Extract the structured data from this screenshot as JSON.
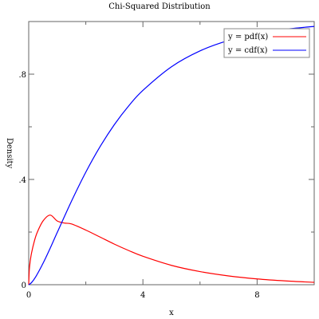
{
  "chart_data": {
    "type": "line",
    "title": "Chi-Squared Distribution",
    "xlabel": "x",
    "ylabel": "Density",
    "xlim": [
      0,
      10
    ],
    "ylim": [
      0,
      1
    ],
    "x_ticks": [
      {
        "value": 0,
        "label": "0"
      },
      {
        "value": 4,
        "label": "4"
      },
      {
        "value": 8,
        "label": "8"
      }
    ],
    "y_ticks": [
      {
        "value": 0,
        "label": "0"
      },
      {
        "value": 0.4,
        "label": ".4"
      },
      {
        "value": 0.8,
        "label": ".8"
      }
    ],
    "minor_x_ticks": [
      2,
      6,
      10
    ],
    "minor_y_ticks": [
      0.2,
      0.6,
      1.0
    ],
    "legend_position": "top-right",
    "series": [
      {
        "name": "y = pdf(x)",
        "color": "#ff0000",
        "x": [
          0.0,
          0.02,
          0.05,
          0.1,
          0.2,
          0.3,
          0.5,
          0.75,
          1.0,
          1.25,
          1.5,
          2.0,
          2.5,
          3.0,
          3.5,
          4.0,
          5.0,
          6.0,
          7.0,
          8.0,
          9.0,
          10.0
        ],
        "y": [
          0.0,
          0.0558,
          0.0871,
          0.121,
          0.1665,
          0.1993,
          0.242,
          0.2646,
          0.242,
          0.2343,
          0.2308,
          0.2076,
          0.181,
          0.1542,
          0.1299,
          0.108,
          0.0735,
          0.0498,
          0.0334,
          0.022,
          0.0144,
          0.009
        ]
      },
      {
        "name": "y = cdf(x)",
        "color": "#0000ff",
        "x": [
          0.0,
          0.1,
          0.25,
          0.5,
          0.75,
          1.0,
          1.5,
          2.0,
          2.5,
          3.0,
          3.5,
          4.0,
          5.0,
          6.0,
          7.0,
          8.0,
          9.0,
          10.0
        ],
        "y": [
          0.0,
          0.0081,
          0.0309,
          0.0811,
          0.1382,
          0.1987,
          0.3177,
          0.4276,
          0.5247,
          0.6084,
          0.6792,
          0.7385,
          0.8282,
          0.8884,
          0.9281,
          0.954,
          0.9707,
          0.9814
        ]
      }
    ]
  }
}
